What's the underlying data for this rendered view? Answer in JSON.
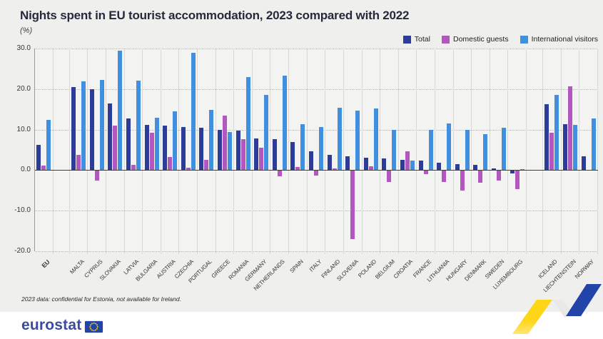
{
  "header": {
    "title": "Nights spent in EU tourist accommodation, 2023 compared with 2022",
    "subtitle": "(%)"
  },
  "legend": [
    {
      "label": "Total",
      "color": "#2c3c98"
    },
    {
      "label": "Domestic guests",
      "color": "#b356bf"
    },
    {
      "label": "International visitors",
      "color": "#4190df"
    }
  ],
  "footer": {
    "note": "2023 data: confidential for Estonia, not available for Ireland.",
    "logo_text": "eurostat"
  },
  "colors": {
    "background": "#efefee",
    "plot_background": "#f3f3f2",
    "zero_line": "#3f3f3f",
    "ribbon_yellow": "#ffd617",
    "ribbon_blue": "#2243a8"
  },
  "chart_data": {
    "type": "bar",
    "title": "Nights spent in EU tourist accommodation, 2023 compared with 2022",
    "ylabel": "(%)",
    "ylim": [
      -20,
      30
    ],
    "y_ticks": [
      "30.0",
      "20.0",
      "10.0",
      "0.0",
      "-10.0",
      "-20.0"
    ],
    "grid": "horizontal dotted, vertical column separators",
    "legend_position": "top-right",
    "categories": [
      "EU",
      "MALTA",
      "CYPRUS",
      "SLOVAKIA",
      "LATVIA",
      "BULGARIA",
      "AUSTRIA",
      "CZECHIA",
      "PORTUGAL",
      "GREECE",
      "ROMANIA",
      "GERMANY",
      "NETHERLANDS",
      "SPAIN",
      "ITALY",
      "FINLAND",
      "SLOVENIA",
      "POLAND",
      "BELGIUM",
      "CROATIA",
      "FRANCE",
      "LITHUANIA",
      "HUNGARY",
      "DENMARK",
      "SWEDEN",
      "LUXEMBOURG",
      "ICELAND",
      "LIECHTENSTEIN",
      "NORWAY"
    ],
    "gaps_after": [
      "EU",
      "LUXEMBOURG"
    ],
    "bold_categories": [
      "EU"
    ],
    "series": [
      {
        "name": "Total",
        "color": "#2c3c98",
        "values": [
          6.2,
          20.5,
          20.0,
          16.4,
          12.7,
          11.1,
          11.0,
          10.7,
          10.4,
          9.9,
          9.7,
          7.9,
          7.6,
          7.0,
          4.6,
          3.8,
          3.5,
          3.1,
          2.8,
          2.6,
          2.3,
          1.8,
          1.4,
          1.3,
          0.4,
          -0.8,
          16.3,
          11.4,
          3.5
        ]
      },
      {
        "name": "Domestic guests",
        "color": "#b356bf",
        "values": [
          1.2,
          3.8,
          -2.5,
          11.0,
          1.3,
          9.2,
          3.3,
          0.6,
          2.6,
          13.4,
          7.7,
          5.6,
          -1.6,
          0.8,
          -1.4,
          0.5,
          -17.0,
          0.9,
          -3.0,
          4.6,
          -0.9,
          -2.9,
          -5.1,
          -3.1,
          -2.6,
          -4.7,
          9.3,
          20.6,
          0.1
        ]
      },
      {
        "name": "International visitors",
        "color": "#4190df",
        "values": [
          12.4,
          21.9,
          22.3,
          29.4,
          22.0,
          12.9,
          14.5,
          28.9,
          14.8,
          9.4,
          22.9,
          18.6,
          23.3,
          11.4,
          10.6,
          15.3,
          14.6,
          15.2,
          9.9,
          2.3,
          10.0,
          11.6,
          9.9,
          8.8,
          10.4,
          0.3,
          18.5,
          11.2,
          12.8
        ]
      }
    ]
  }
}
